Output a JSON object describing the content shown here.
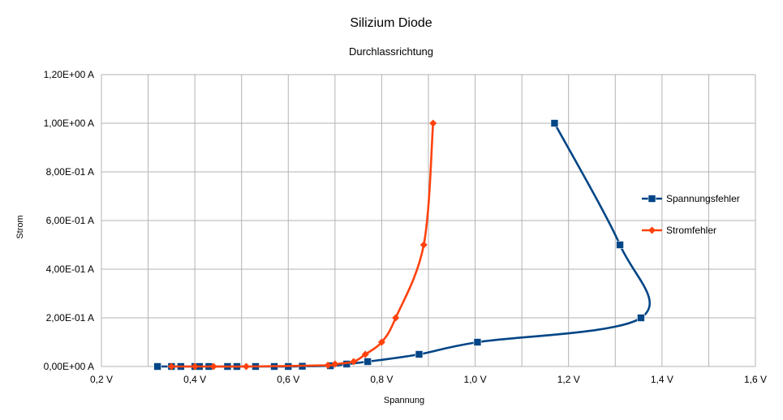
{
  "chart_data": {
    "type": "scatter",
    "title": "Silizium Diode",
    "subtitle": "Durchlassrichtung",
    "xlabel": "Spannung",
    "ylabel": "Strom",
    "xlim": [
      0.2,
      1.6
    ],
    "ylim": [
      0,
      1.2
    ],
    "x_ticks": [
      0.2,
      0.4,
      0.6,
      0.8,
      1.0,
      1.2,
      1.4,
      1.6
    ],
    "x_tick_labels": [
      "0,2 V",
      "0,4 V",
      "0,6 V",
      "0,8 V",
      "1,0 V",
      "1,2 V",
      "1,4 V",
      "1,6 V"
    ],
    "x_minor_step": 0.1,
    "y_ticks": [
      0,
      0.2,
      0.4,
      0.6,
      0.8,
      1.0,
      1.2
    ],
    "y_tick_labels": [
      "0,00E+00 A",
      "2,00E-01 A",
      "4,00E-01 A",
      "6,00E-01 A",
      "8,00E-01 A",
      "1,00E+00 A",
      "1,20E+00 A"
    ],
    "grid": true,
    "legend_position": "right",
    "series": [
      {
        "name": "Spannungsfehler",
        "color": "#004586",
        "marker": "square",
        "points": [
          [
            0.32,
            0.0
          ],
          [
            0.35,
            0.0
          ],
          [
            0.37,
            0.0
          ],
          [
            0.4,
            0.0
          ],
          [
            0.41,
            0.0
          ],
          [
            0.43,
            0.0
          ],
          [
            0.47,
            0.0
          ],
          [
            0.49,
            0.0
          ],
          [
            0.53,
            0.0
          ],
          [
            0.57,
            0.0
          ],
          [
            0.6,
            0.0
          ],
          [
            0.63,
            0.001
          ],
          [
            0.69,
            0.003
          ],
          [
            0.725,
            0.01
          ],
          [
            0.77,
            0.02
          ],
          [
            0.88,
            0.05
          ],
          [
            1.005,
            0.1
          ],
          [
            1.355,
            0.2
          ],
          [
            1.31,
            0.5
          ],
          [
            1.17,
            1.0
          ]
        ]
      },
      {
        "name": "Stromfehler",
        "color": "#ff420e",
        "marker": "diamond",
        "points": [
          [
            0.35,
            0.0
          ],
          [
            0.4,
            0.0
          ],
          [
            0.44,
            0.0
          ],
          [
            0.51,
            0.0
          ],
          [
            0.685,
            0.005
          ],
          [
            0.7,
            0.01
          ],
          [
            0.74,
            0.02
          ],
          [
            0.765,
            0.05
          ],
          [
            0.8,
            0.1
          ],
          [
            0.83,
            0.2
          ],
          [
            0.89,
            0.5
          ],
          [
            0.91,
            1.0
          ]
        ]
      }
    ]
  }
}
